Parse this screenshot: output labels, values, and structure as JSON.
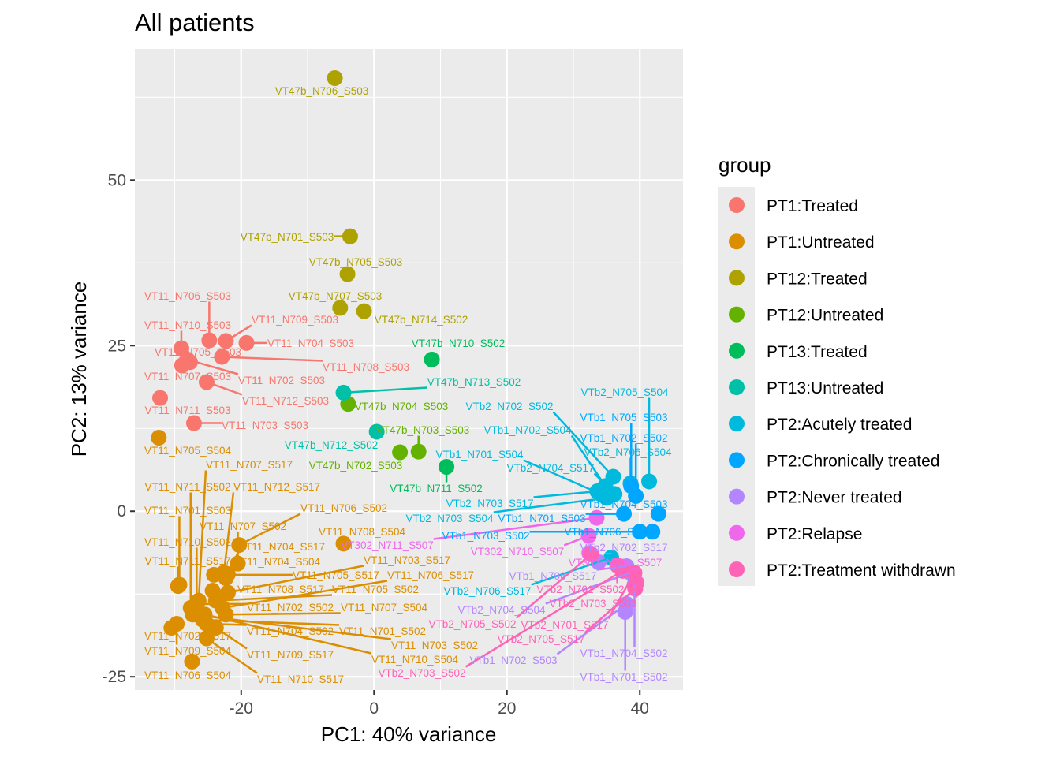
{
  "chart_data": {
    "type": "scatter",
    "title": "All patients",
    "xlabel": "PC1: 40% variance",
    "ylabel": "PC2: 13% variance",
    "xlim": [
      -36,
      46.5
    ],
    "ylim": [
      -27,
      69.8
    ],
    "x_ticks": [
      -20,
      0,
      20,
      40
    ],
    "y_ticks": [
      -25,
      0,
      25,
      50
    ],
    "grid": true,
    "legend": {
      "title": "group",
      "placement": "right",
      "entries": [
        {
          "name": "PT1:Treated",
          "color": "#F8766D"
        },
        {
          "name": "PT1:Untreated",
          "color": "#DB8E00"
        },
        {
          "name": "PT12:Treated",
          "color": "#AEA200"
        },
        {
          "name": "PT12:Untreated",
          "color": "#64B200"
        },
        {
          "name": "PT13:Treated",
          "color": "#00BD5C"
        },
        {
          "name": "PT13:Untreated",
          "color": "#00C1A7"
        },
        {
          "name": "PT2:Acutely treated",
          "color": "#00BADE"
        },
        {
          "name": "PT2:Chronically treated",
          "color": "#00A6FF"
        },
        {
          "name": "PT2:Never treated",
          "color": "#B385FF"
        },
        {
          "name": "PT2:Relapse",
          "color": "#EF67EB"
        },
        {
          "name": "PT2:Treatment withdrawn",
          "color": "#FF63B6"
        }
      ]
    },
    "points": [
      {
        "label": "VT11_N706_S503",
        "group": 0,
        "x": -24.8,
        "y": 25.8
      },
      {
        "label": "VT11_N709_S503",
        "group": 0,
        "x": -22.3,
        "y": 25.7
      },
      {
        "label": "VT11_N704_S503",
        "group": 0,
        "x": -19.2,
        "y": 25.4
      },
      {
        "label": "VT11_N710_S503",
        "group": 0,
        "x": -29.0,
        "y": 24.6
      },
      {
        "label": "VT11_N708_S503",
        "group": 0,
        "x": -22.9,
        "y": 23.3
      },
      {
        "label": "VT11_N705_S503",
        "group": 0,
        "x": -27.7,
        "y": 22.5
      },
      {
        "label": "VT11_N707_S503",
        "group": 0,
        "x": -28.9,
        "y": 22.0
      },
      {
        "label": "VT11_N702_S503",
        "group": 0,
        "x": -28.1,
        "y": 22.9
      },
      {
        "label": "VT11_N712_S503",
        "group": 0,
        "x": -25.2,
        "y": 19.5
      },
      {
        "label": "VT11_N711_S503",
        "group": 0,
        "x": -32.2,
        "y": 17.1
      },
      {
        "label": "VT11_N703_S503",
        "group": 0,
        "x": -27.1,
        "y": 13.3
      },
      {
        "label": "VT11_N705_S504",
        "group": 1,
        "x": -32.4,
        "y": 11.1
      },
      {
        "label": "VT11_N708_S504",
        "group": 1,
        "x": -4.6,
        "y": -4.9
      },
      {
        "label": "VT11_N707_S517",
        "group": 1,
        "x": -26.4,
        "y": -13.5
      },
      {
        "label": "VT11_N711_S502",
        "group": 1,
        "x": -27.6,
        "y": -14.6
      },
      {
        "label": "VT11_N712_S517",
        "group": 1,
        "x": -22.6,
        "y": -9.3
      },
      {
        "label": "VT11_N701_S503",
        "group": 1,
        "x": -29.3,
        "y": -11.1
      },
      {
        "label": "VT11_N706_S502",
        "group": 1,
        "x": -20.3,
        "y": -5.1
      },
      {
        "label": "VT11_N707_S502",
        "group": 1,
        "x": -20.5,
        "y": -7.9
      },
      {
        "label": "VT11_N710_S502",
        "group": 1,
        "x": -26.7,
        "y": -15.2
      },
      {
        "label": "VT11_N704_S517",
        "group": 1,
        "x": -22.0,
        "y": -9.5
      },
      {
        "label": "VT11_N711_S517",
        "group": 1,
        "x": -29.5,
        "y": -11.3
      },
      {
        "label": "VT11_N704_S504",
        "group": 1,
        "x": -22.3,
        "y": -10.1
      },
      {
        "label": "VT11_N705_S517",
        "group": 1,
        "x": -24.1,
        "y": -9.6
      },
      {
        "label": "VT11_N703_S517",
        "group": 1,
        "x": -22.0,
        "y": -12.3
      },
      {
        "label": "VT11_N708_S517",
        "group": 1,
        "x": -24.3,
        "y": -12.0
      },
      {
        "label": "VT11_N705_S502",
        "group": 1,
        "x": -23.8,
        "y": -13.5
      },
      {
        "label": "VT11_N706_S517",
        "group": 1,
        "x": -22.8,
        "y": -14.6
      },
      {
        "label": "VT11_N702_S502",
        "group": 1,
        "x": -26.7,
        "y": -14.0
      },
      {
        "label": "VT11_N707_S504",
        "group": 1,
        "x": -22.3,
        "y": -15.6
      },
      {
        "label": "VT11_N704_S502",
        "group": 1,
        "x": -25.2,
        "y": -17.0
      },
      {
        "label": "VT11_N701_S502",
        "group": 1,
        "x": -25.8,
        "y": -16.4
      },
      {
        "label": "VT11_N703_S502",
        "group": 1,
        "x": -27.3,
        "y": -15.6
      },
      {
        "label": "VT11_N709_S517",
        "group": 1,
        "x": -23.8,
        "y": -17.6
      },
      {
        "label": "VT11_N710_S504",
        "group": 1,
        "x": -25.5,
        "y": -15.6
      },
      {
        "label": "VT11_N709_S504",
        "group": 1,
        "x": -29.7,
        "y": -17.0
      },
      {
        "label": "VT11_N706_S504",
        "group": 1,
        "x": -27.4,
        "y": -22.7
      },
      {
        "label": "VT11_N702_S517",
        "group": 1,
        "x": -30.5,
        "y": -17.6
      },
      {
        "label": "VT11_N710_S517",
        "group": 1,
        "x": -25.2,
        "y": -19.2
      },
      {
        "label": "VT47b_N706_S503",
        "group": 2,
        "x": -5.9,
        "y": 65.4
      },
      {
        "label": "VT47b_N701_S503",
        "group": 2,
        "x": -3.6,
        "y": 41.5
      },
      {
        "label": "VT47b_N705_S503",
        "group": 2,
        "x": -4.0,
        "y": 35.8
      },
      {
        "label": "VT47b_N707_S503",
        "group": 2,
        "x": -5.1,
        "y": 30.7
      },
      {
        "label": "VT47b_N714_S502",
        "group": 2,
        "x": -1.5,
        "y": 30.2
      },
      {
        "label": "VT47b_N704_S503",
        "group": 3,
        "x": -3.9,
        "y": 16.2
      },
      {
        "label": "VT47b_N702_S503",
        "group": 3,
        "x": 3.9,
        "y": 8.9
      },
      {
        "label": "VT47b_N703_S503",
        "group": 3,
        "x": 6.7,
        "y": 9.0
      },
      {
        "label": "VT47b_N710_S502",
        "group": 4,
        "x": 8.7,
        "y": 22.9
      },
      {
        "label": "VT47b_N711_S502",
        "group": 4,
        "x": 10.9,
        "y": 6.7
      },
      {
        "label": "VT47b_N713_S502",
        "group": 5,
        "x": -4.6,
        "y": 17.9
      },
      {
        "label": "VT47b_N712_S502",
        "group": 5,
        "x": 0.4,
        "y": 12.0
      },
      {
        "label": "VTb2_N705_S504",
        "group": 6,
        "x": 41.4,
        "y": 4.5
      },
      {
        "label": "VTb2_N702_S502",
        "group": 6,
        "x": 36.0,
        "y": 5.2
      },
      {
        "label": "VTb1_N702_S504",
        "group": 6,
        "x": 34.8,
        "y": 3.8
      },
      {
        "label": "VTb1_N701_S504",
        "group": 6,
        "x": 34.1,
        "y": 2.6
      },
      {
        "label": "VTb2_N704_S517",
        "group": 6,
        "x": 36.2,
        "y": 2.6
      },
      {
        "label": "VTb2_N706_S504",
        "group": 6,
        "x": 38.6,
        "y": 4.2
      },
      {
        "label": "VTb2_N703_S517",
        "group": 6,
        "x": 33.6,
        "y": 3.0
      },
      {
        "label": "VTb2_N703_S504",
        "group": 6,
        "x": 35.0,
        "y": 2.0
      },
      {
        "label": "VTb2_N706_S517",
        "group": 6,
        "x": 35.7,
        "y": -7.0
      },
      {
        "label": "VTb1_N705_S503",
        "group": 7,
        "x": 38.7,
        "y": 3.8
      },
      {
        "label": "VTb1_N702_S502",
        "group": 7,
        "x": 39.4,
        "y": 2.3
      },
      {
        "label": "VTb1_N701_S503",
        "group": 7,
        "x": 37.6,
        "y": -0.4
      },
      {
        "label": "VTb1_N704_S503",
        "group": 7,
        "x": 42.8,
        "y": -0.4
      },
      {
        "label": "VTb1_N706_S503",
        "group": 7,
        "x": 40.0,
        "y": -3.1
      },
      {
        "label": "VTb1_N703_S502",
        "group": 7,
        "x": 41.9,
        "y": -3.1
      },
      {
        "label": "VTb2_N702_S517",
        "group": 8,
        "x": 33.8,
        "y": -7.7
      },
      {
        "label": "VTb1_N706_S517",
        "group": 8,
        "x": 38.0,
        "y": -8.3
      },
      {
        "label": "VTb2_N704_S504",
        "group": 8,
        "x": 38.6,
        "y": -9.3
      },
      {
        "label": "VTb1_N702_S503",
        "group": 8,
        "x": 38.0,
        "y": -14.0
      },
      {
        "label": "VTb1_N704_S502",
        "group": 8,
        "x": 39.2,
        "y": -11.1
      },
      {
        "label": "VTb1_N701_S502",
        "group": 8,
        "x": 37.8,
        "y": -15.2
      },
      {
        "label": "VT302_N711_S507",
        "group": 9,
        "x": 33.5,
        "y": -1.0
      },
      {
        "label": "VT302_N710_S507",
        "group": 9,
        "x": 32.3,
        "y": -3.7
      },
      {
        "label": "VT302_N709_S507",
        "group": 9,
        "x": 32.4,
        "y": -6.3
      },
      {
        "label": "VTb2_N705_S502",
        "group": 10,
        "x": 32.7,
        "y": -6.5
      },
      {
        "label": "VTb2_N701_S502",
        "group": 10,
        "x": 36.6,
        "y": -8.2
      },
      {
        "label": "VTb2_N703_S503",
        "group": 10,
        "x": 39.5,
        "y": -10.8
      },
      {
        "label": "VTb2_N703_S502",
        "group": 10,
        "x": 37.4,
        "y": -9.0
      },
      {
        "label": "VTb2_N701_S517",
        "group": 10,
        "x": 39.2,
        "y": -9.3
      },
      {
        "label": "VTb2_N705_S517",
        "group": 10,
        "x": 39.3,
        "y": -11.7
      }
    ]
  }
}
